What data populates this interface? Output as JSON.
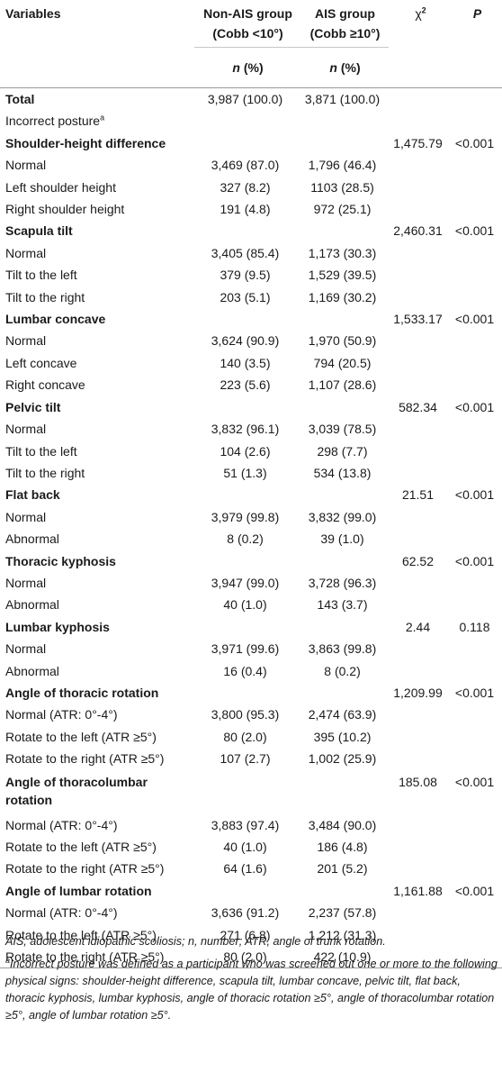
{
  "header": {
    "variables": "Variables",
    "non_ais_group": "Non-AIS group",
    "non_ais_sub": "(Cobb <10°)",
    "ais_group": "AIS group",
    "ais_sub": "(Cobb ≥10°)",
    "chi": "χ",
    "chi_sup": "2",
    "p": "P",
    "n_label": "n",
    "pct_label": " (%)"
  },
  "rows": [
    {
      "type": "bold",
      "label": "Total",
      "non_ais": "3,987 (100.0)",
      "ais": "3,871 (100.0)",
      "chi2": "",
      "p": ""
    },
    {
      "type": "plain",
      "label": "Incorrect posture",
      "sup": "a",
      "non_ais": "",
      "ais": "",
      "chi2": "",
      "p": ""
    },
    {
      "type": "bold",
      "label": "Shoulder-height difference",
      "non_ais": "",
      "ais": "",
      "chi2": "1,475.79",
      "p": "<0.001"
    },
    {
      "type": "sub",
      "label": "Normal",
      "non_ais": "3,469 (87.0)",
      "ais": "1,796 (46.4)",
      "chi2": "",
      "p": ""
    },
    {
      "type": "sub",
      "label": "Left shoulder height",
      "non_ais": "327 (8.2)",
      "ais": "1103 (28.5)",
      "chi2": "",
      "p": ""
    },
    {
      "type": "sub",
      "label": "Right shoulder height",
      "non_ais": "191 (4.8)",
      "ais": "972 (25.1)",
      "chi2": "",
      "p": ""
    },
    {
      "type": "bold",
      "label": "Scapula tilt",
      "non_ais": "",
      "ais": "",
      "chi2": "2,460.31",
      "p": "<0.001"
    },
    {
      "type": "sub",
      "label": "Normal",
      "non_ais": "3,405 (85.4)",
      "ais": "1,173 (30.3)",
      "chi2": "",
      "p": ""
    },
    {
      "type": "sub",
      "label": "Tilt to the left",
      "non_ais": "379 (9.5)",
      "ais": "1,529 (39.5)",
      "chi2": "",
      "p": ""
    },
    {
      "type": "sub",
      "label": "Tilt to the right",
      "non_ais": "203 (5.1)",
      "ais": "1,169 (30.2)",
      "chi2": "",
      "p": ""
    },
    {
      "type": "bold",
      "label": "Lumbar concave",
      "non_ais": "",
      "ais": "",
      "chi2": "1,533.17",
      "p": "<0.001"
    },
    {
      "type": "sub",
      "label": "Normal",
      "non_ais": "3,624 (90.9)",
      "ais": "1,970 (50.9)",
      "chi2": "",
      "p": ""
    },
    {
      "type": "sub",
      "label": "Left concave",
      "non_ais": "140 (3.5)",
      "ais": "794 (20.5)",
      "chi2": "",
      "p": ""
    },
    {
      "type": "sub",
      "label": "Right concave",
      "non_ais": "223 (5.6)",
      "ais": "1,107 (28.6)",
      "chi2": "",
      "p": ""
    },
    {
      "type": "bold",
      "label": "Pelvic tilt",
      "non_ais": "",
      "ais": "",
      "chi2": "582.34",
      "p": "<0.001"
    },
    {
      "type": "sub",
      "label": "Normal",
      "non_ais": "3,832 (96.1)",
      "ais": "3,039 (78.5)",
      "chi2": "",
      "p": ""
    },
    {
      "type": "sub",
      "label": "Tilt to the left",
      "non_ais": "104 (2.6)",
      "ais": "298 (7.7)",
      "chi2": "",
      "p": ""
    },
    {
      "type": "sub",
      "label": "Tilt to the right",
      "non_ais": "51 (1.3)",
      "ais": "534 (13.8)",
      "chi2": "",
      "p": ""
    },
    {
      "type": "bold",
      "label": "Flat back",
      "non_ais": "",
      "ais": "",
      "chi2": "21.51",
      "p": "<0.001"
    },
    {
      "type": "sub",
      "label": "Normal",
      "non_ais": "3,979 (99.8)",
      "ais": "3,832 (99.0)",
      "chi2": "",
      "p": ""
    },
    {
      "type": "sub",
      "label": "Abnormal",
      "non_ais": "8 (0.2)",
      "ais": "39 (1.0)",
      "chi2": "",
      "p": ""
    },
    {
      "type": "bold",
      "label": "Thoracic kyphosis",
      "non_ais": "",
      "ais": "",
      "chi2": "62.52",
      "p": "<0.001"
    },
    {
      "type": "sub",
      "label": "Normal",
      "non_ais": "3,947 (99.0)",
      "ais": "3,728 (96.3)",
      "chi2": "",
      "p": ""
    },
    {
      "type": "sub",
      "label": "Abnormal",
      "non_ais": "40 (1.0)",
      "ais": "143 (3.7)",
      "chi2": "",
      "p": ""
    },
    {
      "type": "bold",
      "label": "Lumbar kyphosis",
      "non_ais": "",
      "ais": "",
      "chi2": "2.44",
      "p": "0.118"
    },
    {
      "type": "sub",
      "label": "Normal",
      "non_ais": "3,971 (99.6)",
      "ais": "3,863 (99.8)",
      "chi2": "",
      "p": ""
    },
    {
      "type": "sub",
      "label": "Abnormal",
      "non_ais": "16 (0.4)",
      "ais": "8 (0.2)",
      "chi2": "",
      "p": ""
    },
    {
      "type": "bold",
      "label": "Angle of thoracic rotation",
      "non_ais": "",
      "ais": "",
      "chi2": "1,209.99",
      "p": "<0.001"
    },
    {
      "type": "sub",
      "label": "Normal (ATR: 0°-4°)",
      "non_ais": "3,800 (95.3)",
      "ais": "2,474 (63.9)",
      "chi2": "",
      "p": ""
    },
    {
      "type": "sub",
      "label": "Rotate to the left (ATR ≥5°)",
      "non_ais": "80 (2.0)",
      "ais": "395 (10.2)",
      "chi2": "",
      "p": ""
    },
    {
      "type": "sub",
      "label": "Rotate to the right (ATR ≥5°)",
      "non_ais": "107 (2.7)",
      "ais": "1,002 (25.9)",
      "chi2": "",
      "p": ""
    },
    {
      "type": "bold-tall",
      "label": "Angle of thoracolumbar rotation",
      "non_ais": "",
      "ais": "",
      "chi2": "185.08",
      "p": "<0.001"
    },
    {
      "type": "sub",
      "label": "Normal (ATR: 0°-4°)",
      "non_ais": "3,883 (97.4)",
      "ais": "3,484 (90.0)",
      "chi2": "",
      "p": ""
    },
    {
      "type": "sub",
      "label": "Rotate to the left (ATR ≥5°)",
      "non_ais": "40 (1.0)",
      "ais": "186 (4.8)",
      "chi2": "",
      "p": ""
    },
    {
      "type": "sub",
      "label": "Rotate to the right (ATR ≥5°)",
      "non_ais": "64 (1.6)",
      "ais": "201 (5.2)",
      "chi2": "",
      "p": ""
    },
    {
      "type": "bold",
      "label": "Angle of lumbar rotation",
      "non_ais": "",
      "ais": "",
      "chi2": "1,161.88",
      "p": "<0.001"
    },
    {
      "type": "sub",
      "label": "Normal (ATR: 0°-4°)",
      "non_ais": "3,636 (91.2)",
      "ais": "2,237 (57.8)",
      "chi2": "",
      "p": ""
    },
    {
      "type": "sub",
      "label": "Rotate to the left (ATR ≥5°)",
      "non_ais": "271 (6.8)",
      "ais": "1,212 (31.3)",
      "chi2": "",
      "p": ""
    },
    {
      "type": "sub",
      "label": "Rotate to the right (ATR ≥5°)",
      "non_ais": "80 (2.0)",
      "ais": "422 (10.9)",
      "chi2": "",
      "p": ""
    }
  ],
  "footnotes": {
    "abbrev": "AIS, adolescent idiopathic scoliosis; n, number; ATR, angle of trunk rotation.",
    "note_mark": "a",
    "note": "Incorrect posture was defined as a participant who was screened out one or more to the following physical signs: shoulder-height difference, scapula tilt, lumbar concave, pelvic tilt, flat back, thoracic kyphosis, lumbar kyphosis, angle of thoracic rotation ≥5°, angle of thoracolumbar rotation ≥5°, angle of lumbar rotation ≥5°."
  }
}
